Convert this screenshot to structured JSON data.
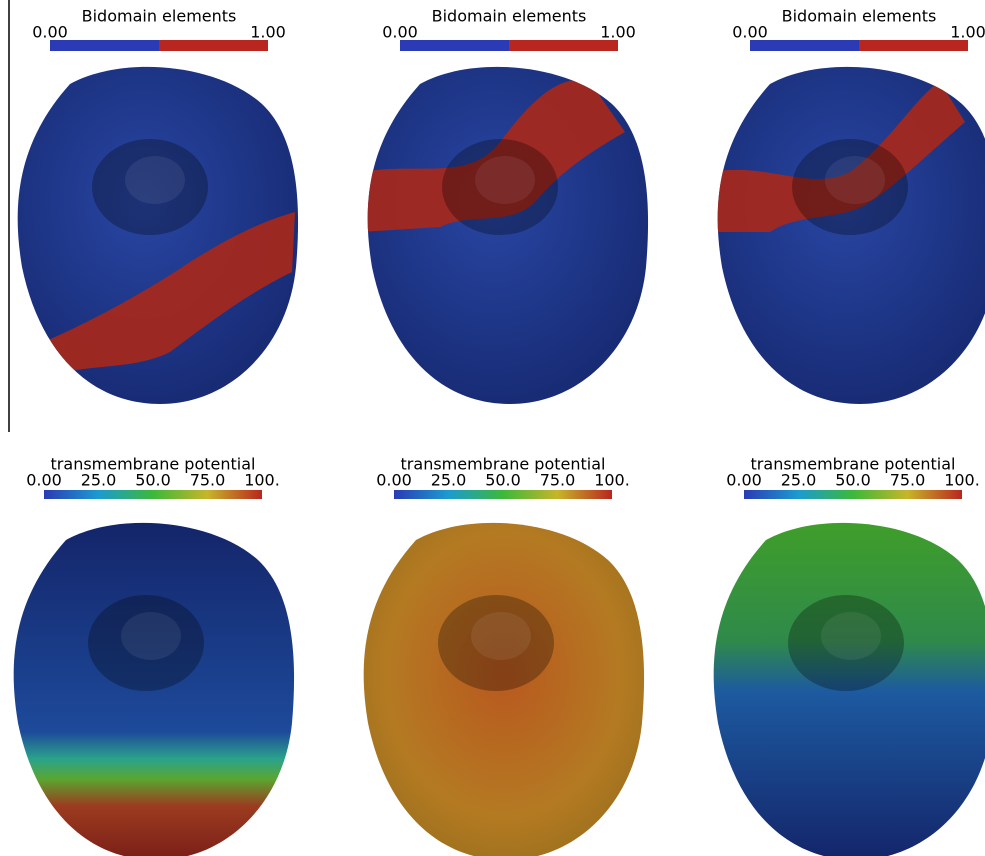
{
  "panels": [
    {
      "title": "Bidomain elements",
      "labels": [
        "0.00",
        "1.00"
      ]
    },
    {
      "title": "Bidomain elements",
      "labels": [
        "0.00",
        "1.00"
      ]
    },
    {
      "title": "Bidomain elements",
      "labels": [
        "0.00",
        "1.00"
      ]
    },
    {
      "title": "transmembrane potential",
      "labels": [
        "0.00",
        "25.0",
        "50.0",
        "75.0",
        "100."
      ]
    },
    {
      "title": "transmembrane potential",
      "labels": [
        "0.00",
        "25.0",
        "50.0",
        "75.0",
        "100."
      ]
    },
    {
      "title": "transmembrane potential",
      "labels": [
        "0.00",
        "25.0",
        "50.0",
        "75.0",
        "100."
      ]
    }
  ]
}
